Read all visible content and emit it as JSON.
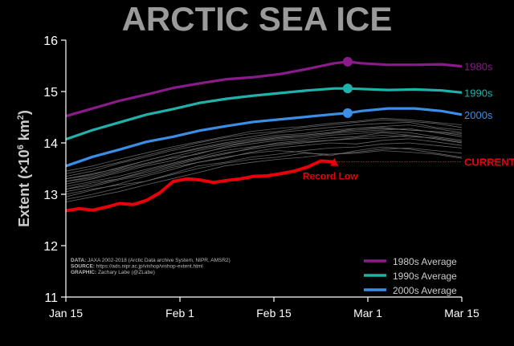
{
  "chart_data": {
    "type": "line",
    "title": "ARCTIC SEA ICE",
    "ylabel_prefix": "Extent (",
    "ylabel_times": "×",
    "ylabel_ten": "10",
    "ylabel_exp": "6",
    "ylabel_unit": " km",
    "ylabel_unit_exp": "2",
    "ylabel_suffix": ")",
    "ylim": [
      11,
      16
    ],
    "yticks": [
      11,
      12,
      13,
      14,
      15,
      16
    ],
    "xlim": [
      0,
      59
    ],
    "xticks": [
      {
        "value": 0,
        "label": "Jan 15"
      },
      {
        "value": 17,
        "label": "Feb 1"
      },
      {
        "value": 31,
        "label": "Feb 15"
      },
      {
        "value": 45,
        "label": "Mar 1"
      },
      {
        "value": 59,
        "label": "Mar 15"
      }
    ],
    "series": [
      {
        "name": "1980s Average",
        "end_label": "1980s",
        "color": "#8B1A8B",
        "x": [
          0,
          4,
          8,
          12,
          16,
          20,
          24,
          28,
          32,
          36,
          40,
          42,
          44,
          48,
          52,
          56,
          59
        ],
        "y": [
          14.52,
          14.67,
          14.82,
          14.94,
          15.07,
          15.16,
          15.24,
          15.28,
          15.34,
          15.44,
          15.55,
          15.58,
          15.55,
          15.52,
          15.52,
          15.53,
          15.49
        ]
      },
      {
        "name": "1990s Average",
        "end_label": "1990s",
        "color": "#20B2AA",
        "x": [
          0,
          4,
          8,
          12,
          16,
          20,
          24,
          28,
          32,
          36,
          40,
          42,
          44,
          48,
          52,
          56,
          59
        ],
        "y": [
          14.07,
          14.25,
          14.4,
          14.55,
          14.66,
          14.78,
          14.86,
          14.92,
          14.97,
          15.02,
          15.06,
          15.06,
          15.05,
          15.03,
          15.04,
          15.02,
          14.98
        ]
      },
      {
        "name": "2000s Average",
        "end_label": "2000s",
        "color": "#3A8EE6",
        "x": [
          0,
          4,
          8,
          12,
          16,
          20,
          24,
          28,
          32,
          36,
          40,
          42,
          44,
          48,
          52,
          56,
          59
        ],
        "y": [
          13.55,
          13.73,
          13.87,
          14.02,
          14.12,
          14.24,
          14.33,
          14.41,
          14.46,
          14.51,
          14.56,
          14.58,
          14.62,
          14.67,
          14.67,
          14.62,
          14.55
        ]
      }
    ],
    "current": {
      "name": "Current",
      "color": "#E8000B",
      "x": [
        0,
        2,
        4,
        6,
        8,
        10,
        12,
        14,
        16,
        18,
        20,
        22,
        24,
        26,
        28,
        30,
        32,
        34,
        36,
        38,
        40
      ],
      "y": [
        12.68,
        12.72,
        12.69,
        12.75,
        12.82,
        12.8,
        12.88,
        13.03,
        13.25,
        13.3,
        13.28,
        13.23,
        13.27,
        13.3,
        13.35,
        13.36,
        13.4,
        13.45,
        13.53,
        13.65,
        13.63
      ],
      "latest": 13.63,
      "end_label": "CURRENT",
      "record_label": "Record Low"
    },
    "background_years": [
      [
        12.95,
        13.08,
        13.2,
        13.35,
        13.48,
        13.62,
        13.72,
        13.8,
        13.85,
        13.82,
        13.75,
        13.85,
        13.92,
        13.88,
        13.8,
        13.72
      ],
      [
        13.25,
        13.32,
        13.45,
        13.58,
        13.7,
        13.78,
        13.92,
        14.02,
        14.1,
        14.15,
        14.2,
        14.28,
        14.3,
        14.25,
        14.22,
        14.15
      ],
      [
        13.1,
        13.22,
        13.3,
        13.42,
        13.55,
        13.68,
        13.78,
        13.9,
        14.0,
        14.05,
        14.1,
        14.12,
        14.2,
        14.15,
        14.08,
        14.0
      ],
      [
        13.35,
        13.45,
        13.6,
        13.72,
        13.85,
        13.95,
        14.05,
        14.12,
        14.2,
        14.25,
        14.3,
        14.35,
        14.38,
        14.4,
        14.3,
        14.25
      ],
      [
        13.0,
        13.1,
        13.18,
        13.25,
        13.4,
        13.55,
        13.62,
        13.72,
        13.78,
        13.85,
        13.9,
        13.92,
        13.98,
        14.0,
        13.95,
        13.9
      ],
      [
        13.4,
        13.5,
        13.62,
        13.75,
        13.88,
        14.0,
        14.1,
        14.18,
        14.22,
        14.3,
        14.35,
        14.4,
        14.45,
        14.42,
        14.38,
        14.3
      ],
      [
        12.9,
        13.0,
        13.12,
        13.25,
        13.38,
        13.5,
        13.6,
        13.68,
        13.72,
        13.8,
        13.78,
        13.82,
        13.88,
        13.9,
        13.85,
        13.8
      ],
      [
        13.2,
        13.3,
        13.42,
        13.55,
        13.65,
        13.8,
        13.9,
        13.98,
        14.05,
        14.08,
        14.15,
        14.18,
        14.22,
        14.2,
        14.12,
        14.05
      ],
      [
        13.05,
        13.15,
        13.28,
        13.38,
        13.52,
        13.62,
        13.7,
        13.82,
        13.9,
        13.95,
        14.0,
        13.98,
        14.05,
        14.08,
        14.02,
        13.95
      ],
      [
        13.3,
        13.4,
        13.5,
        13.65,
        13.78,
        13.9,
        14.0,
        14.08,
        14.15,
        14.18,
        14.25,
        14.28,
        14.32,
        14.35,
        14.28,
        14.2
      ],
      [
        13.15,
        13.25,
        13.35,
        13.48,
        13.6,
        13.72,
        13.85,
        13.92,
        13.98,
        14.02,
        14.05,
        14.1,
        14.15,
        14.12,
        14.1,
        14.02
      ],
      [
        12.85,
        12.95,
        13.05,
        13.18,
        13.3,
        13.42,
        13.55,
        13.62,
        13.68,
        13.72,
        13.78,
        13.8,
        13.85,
        13.82,
        13.78,
        13.7
      ],
      [
        13.45,
        13.55,
        13.68,
        13.8,
        13.92,
        14.02,
        14.12,
        14.22,
        14.28,
        14.32,
        14.38,
        14.42,
        14.48,
        14.45,
        14.4,
        14.35
      ],
      [
        13.25,
        13.35,
        13.48,
        13.6,
        13.72,
        13.85,
        13.95,
        14.02,
        14.08,
        14.12,
        14.18,
        14.22,
        14.25,
        14.28,
        14.2,
        14.12
      ],
      [
        13.1,
        13.18,
        13.3,
        13.45,
        13.58,
        13.7,
        13.8,
        13.88,
        13.95,
        14.0,
        14.05,
        14.08,
        14.1,
        14.15,
        14.08,
        14.0
      ],
      [
        13.3,
        13.38,
        13.52,
        13.65,
        13.78,
        13.88,
        13.98,
        14.05,
        14.12,
        14.15,
        14.2,
        14.25,
        14.28,
        14.25,
        14.22,
        14.18
      ]
    ],
    "legend": {
      "placement": "bottom-right"
    },
    "source_lines": [
      {
        "key": "DATA:",
        "text": " JAXA 2002-2018 (Arctic Data archive System, NIPR, AMSR2)"
      },
      {
        "key": "SOURCE:",
        "text": " https://ads.nipr.ac.jp/vishop/vishop-extent.html"
      },
      {
        "key": "GRAPHIC:",
        "text": " Zachary Labe (@ZLabe)"
      }
    ]
  },
  "colors": {
    "background": "#000000",
    "axis": "#ffffff",
    "title": "#9a9a9a",
    "label": "#cccccc",
    "spaghetti": "#6e6e6e"
  }
}
